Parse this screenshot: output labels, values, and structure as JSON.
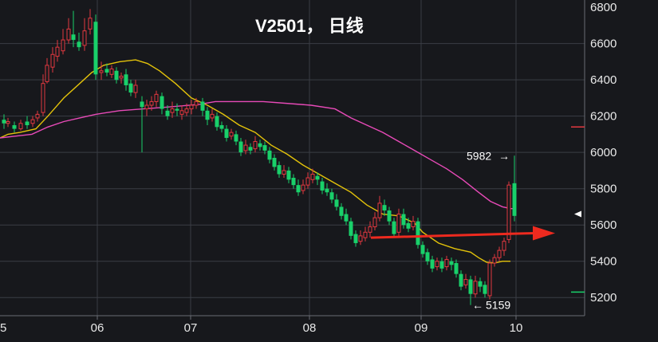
{
  "chart_data": {
    "type": "candlestick",
    "title": "V2501， 日线",
    "xlabel": "",
    "ylabel": "",
    "ylim": [
      5100,
      6840
    ],
    "y_ticks": [
      5200,
      5400,
      5600,
      5800,
      6000,
      6200,
      6400,
      6600
    ],
    "x_tick_labels": [
      "5",
      "06",
      "07",
      "08",
      "09",
      "10"
    ],
    "grid": true,
    "colors": {
      "background": "#17181c",
      "grid": "#3a3d44",
      "up": "#e2383f",
      "down": "#19d06a",
      "ma_short": "#e3c20a",
      "ma_long": "#e84ab8",
      "arrow": "#ee2a1f",
      "axis_border": "#6a6d73"
    },
    "series": [
      {
        "name": "",
        "color": "#e3c20a",
        "points": [
          [
            0,
            6080
          ],
          [
            10,
            6100
          ],
          [
            25,
            6110
          ],
          [
            45,
            6130
          ],
          [
            60,
            6200
          ],
          [
            80,
            6300
          ],
          [
            100,
            6380
          ],
          [
            115,
            6440
          ],
          [
            130,
            6480
          ],
          [
            150,
            6500
          ],
          [
            170,
            6510
          ],
          [
            185,
            6490
          ],
          [
            200,
            6450
          ],
          [
            220,
            6380
          ],
          [
            240,
            6300
          ],
          [
            260,
            6260
          ],
          [
            280,
            6210
          ],
          [
            300,
            6150
          ],
          [
            320,
            6110
          ],
          [
            340,
            6040
          ],
          [
            360,
            5990
          ],
          [
            380,
            5930
          ],
          [
            400,
            5880
          ],
          [
            420,
            5830
          ],
          [
            440,
            5780
          ],
          [
            460,
            5710
          ],
          [
            480,
            5660
          ],
          [
            500,
            5650
          ],
          [
            520,
            5610
          ],
          [
            530,
            5560
          ],
          [
            550,
            5500
          ],
          [
            570,
            5470
          ],
          [
            590,
            5450
          ],
          [
            600,
            5420
          ],
          [
            610,
            5395
          ],
          [
            620,
            5390
          ],
          [
            630,
            5400
          ],
          [
            640,
            5400
          ]
        ]
      },
      {
        "name": "",
        "color": "#e84ab8",
        "points": [
          [
            0,
            6080
          ],
          [
            20,
            6090
          ],
          [
            40,
            6100
          ],
          [
            60,
            6140
          ],
          [
            80,
            6170
          ],
          [
            100,
            6190
          ],
          [
            120,
            6210
          ],
          [
            150,
            6230
          ],
          [
            180,
            6240
          ],
          [
            210,
            6250
          ],
          [
            250,
            6265
          ],
          [
            270,
            6280
          ],
          [
            330,
            6280
          ],
          [
            390,
            6260
          ],
          [
            420,
            6240
          ],
          [
            440,
            6190
          ],
          [
            460,
            6150
          ],
          [
            480,
            6110
          ],
          [
            500,
            6060
          ],
          [
            520,
            6010
          ],
          [
            540,
            5960
          ],
          [
            560,
            5910
          ],
          [
            580,
            5850
          ],
          [
            600,
            5780
          ],
          [
            615,
            5730
          ],
          [
            630,
            5700
          ],
          [
            640,
            5690
          ],
          [
            645,
            5690
          ]
        ]
      }
    ],
    "candles": [
      [
        5,
        6180,
        6160,
        6210,
        6130
      ],
      [
        10,
        6160,
        6170,
        6190,
        6140
      ],
      [
        18,
        6150,
        6130,
        6170,
        6110
      ],
      [
        26,
        6130,
        6160,
        6180,
        6120
      ],
      [
        34,
        6170,
        6150,
        6200,
        6130
      ],
      [
        41,
        6160,
        6180,
        6200,
        6140
      ],
      [
        47,
        6190,
        6210,
        6230,
        6170
      ],
      [
        54,
        6220,
        6380,
        6430,
        6200
      ],
      [
        59,
        6390,
        6480,
        6520,
        6380
      ],
      [
        66,
        6470,
        6540,
        6580,
        6440
      ],
      [
        72,
        6530,
        6580,
        6620,
        6500
      ],
      [
        79,
        6560,
        6620,
        6680,
        6540
      ],
      [
        86,
        6620,
        6680,
        6740,
        6600
      ],
      [
        92,
        6650,
        6620,
        6780,
        6580
      ],
      [
        99,
        6610,
        6580,
        6660,
        6560
      ],
      [
        106,
        6590,
        6670,
        6740,
        6560
      ],
      [
        113,
        6680,
        6740,
        6790,
        6650
      ],
      [
        120,
        6720,
        6430,
        6760,
        6400
      ],
      [
        127,
        6440,
        6450,
        6500,
        6400
      ],
      [
        134,
        6460,
        6440,
        6490,
        6420
      ],
      [
        140,
        6430,
        6460,
        6480,
        6410
      ],
      [
        146,
        6450,
        6400,
        6470,
        6380
      ],
      [
        152,
        6410,
        6420,
        6440,
        6380
      ],
      [
        158,
        6430,
        6370,
        6460,
        6340
      ],
      [
        164,
        6380,
        6330,
        6400,
        6310
      ],
      [
        170,
        6330,
        6370,
        6400,
        6300
      ],
      [
        178,
        6280,
        6250,
        6310,
        6000
      ],
      [
        184,
        6240,
        6260,
        6290,
        6200
      ],
      [
        190,
        6260,
        6280,
        6310,
        6230
      ],
      [
        196,
        6280,
        6320,
        6340,
        6250
      ],
      [
        203,
        6310,
        6240,
        6330,
        6210
      ],
      [
        210,
        6230,
        6200,
        6260,
        6180
      ],
      [
        216,
        6220,
        6240,
        6280,
        6190
      ],
      [
        222,
        6240,
        6230,
        6270,
        6200
      ],
      [
        228,
        6210,
        6230,
        6260,
        6180
      ],
      [
        234,
        6220,
        6240,
        6270,
        6200
      ],
      [
        240,
        6240,
        6260,
        6290,
        6210
      ],
      [
        246,
        6260,
        6280,
        6300,
        6240
      ],
      [
        254,
        6280,
        6230,
        6300,
        6200
      ],
      [
        260,
        6230,
        6180,
        6250,
        6150
      ],
      [
        266,
        6190,
        6210,
        6240,
        6170
      ],
      [
        272,
        6200,
        6140,
        6220,
        6120
      ],
      [
        278,
        6150,
        6130,
        6170,
        6110
      ],
      [
        284,
        6130,
        6080,
        6150,
        6060
      ],
      [
        290,
        6090,
        6110,
        6130,
        6070
      ],
      [
        296,
        6100,
        6060,
        6120,
        6040
      ],
      [
        302,
        6060,
        6000,
        6080,
        5980
      ],
      [
        308,
        6010,
        6040,
        6070,
        5990
      ],
      [
        314,
        6030,
        6010,
        6050,
        5990
      ],
      [
        320,
        6020,
        6060,
        6090,
        6000
      ],
      [
        326,
        6050,
        6030,
        6070,
        6010
      ],
      [
        332,
        6040,
        6010,
        6060,
        5990
      ],
      [
        338,
        6010,
        5960,
        6030,
        5940
      ],
      [
        344,
        5970,
        5920,
        5990,
        5900
      ],
      [
        350,
        5930,
        5880,
        5950,
        5860
      ],
      [
        356,
        5880,
        5900,
        5930,
        5860
      ],
      [
        362,
        5900,
        5850,
        5920,
        5830
      ],
      [
        368,
        5860,
        5820,
        5880,
        5800
      ],
      [
        374,
        5820,
        5780,
        5850,
        5760
      ],
      [
        380,
        5790,
        5820,
        5850,
        5770
      ],
      [
        386,
        5820,
        5860,
        5890,
        5800
      ],
      [
        392,
        5850,
        5880,
        5910,
        5830
      ],
      [
        398,
        5870,
        5850,
        5890,
        5820
      ],
      [
        404,
        5840,
        5790,
        5860,
        5770
      ],
      [
        410,
        5800,
        5780,
        5830,
        5760
      ],
      [
        416,
        5780,
        5740,
        5800,
        5720
      ],
      [
        422,
        5740,
        5700,
        5770,
        5680
      ],
      [
        428,
        5700,
        5650,
        5720,
        5630
      ],
      [
        434,
        5660,
        5620,
        5690,
        5600
      ],
      [
        440,
        5620,
        5540,
        5640,
        5520
      ],
      [
        446,
        5550,
        5500,
        5570,
        5480
      ],
      [
        452,
        5510,
        5540,
        5570,
        5490
      ],
      [
        458,
        5530,
        5560,
        5590,
        5510
      ],
      [
        464,
        5560,
        5590,
        5620,
        5530
      ],
      [
        470,
        5590,
        5640,
        5670,
        5570
      ],
      [
        476,
        5640,
        5720,
        5760,
        5620
      ],
      [
        482,
        5710,
        5680,
        5740,
        5650
      ],
      [
        488,
        5680,
        5620,
        5700,
        5600
      ],
      [
        494,
        5620,
        5550,
        5640,
        5530
      ],
      [
        500,
        5560,
        5660,
        5690,
        5540
      ],
      [
        506,
        5660,
        5600,
        5690,
        5580
      ],
      [
        512,
        5610,
        5580,
        5640,
        5560
      ],
      [
        518,
        5590,
        5620,
        5650,
        5570
      ],
      [
        524,
        5620,
        5490,
        5640,
        5470
      ],
      [
        530,
        5490,
        5440,
        5510,
        5420
      ],
      [
        536,
        5450,
        5400,
        5470,
        5380
      ],
      [
        542,
        5410,
        5360,
        5430,
        5340
      ],
      [
        548,
        5370,
        5400,
        5420,
        5350
      ],
      [
        554,
        5400,
        5360,
        5420,
        5340
      ],
      [
        560,
        5370,
        5410,
        5430,
        5350
      ],
      [
        566,
        5400,
        5380,
        5420,
        5350
      ],
      [
        572,
        5390,
        5330,
        5410,
        5310
      ],
      [
        578,
        5330,
        5260,
        5350,
        5240
      ],
      [
        584,
        5270,
        5300,
        5330,
        5250
      ],
      [
        590,
        5300,
        5220,
        5320,
        5159
      ],
      [
        596,
        5220,
        5290,
        5320,
        5200
      ],
      [
        602,
        5290,
        5260,
        5310,
        5230
      ],
      [
        608,
        5270,
        5220,
        5290,
        5200
      ],
      [
        614,
        5210,
        5390,
        5410,
        5190
      ],
      [
        620,
        5390,
        5420,
        5440,
        5370
      ],
      [
        626,
        5420,
        5460,
        5480,
        5400
      ],
      [
        632,
        5460,
        5510,
        5530,
        5430
      ],
      [
        638,
        5520,
        5820,
        5840,
        5500
      ],
      [
        645,
        5830,
        5650,
        5982,
        5620
      ]
    ],
    "annotations": {
      "high_label": "5982",
      "high_arrow": "→",
      "low_label": "5159",
      "low_arrow": "←"
    },
    "arrow_line": {
      "from": [
        465,
        5530
      ],
      "to": [
        680,
        5555
      ]
    },
    "right_markers": [
      {
        "value": 6140,
        "color": "#e2383f",
        "shape": "dash"
      },
      {
        "value": 5660,
        "color": "#ffffff",
        "shape": "triangle"
      },
      {
        "value": 5230,
        "color": "#19d06a",
        "shape": "dash"
      }
    ]
  }
}
